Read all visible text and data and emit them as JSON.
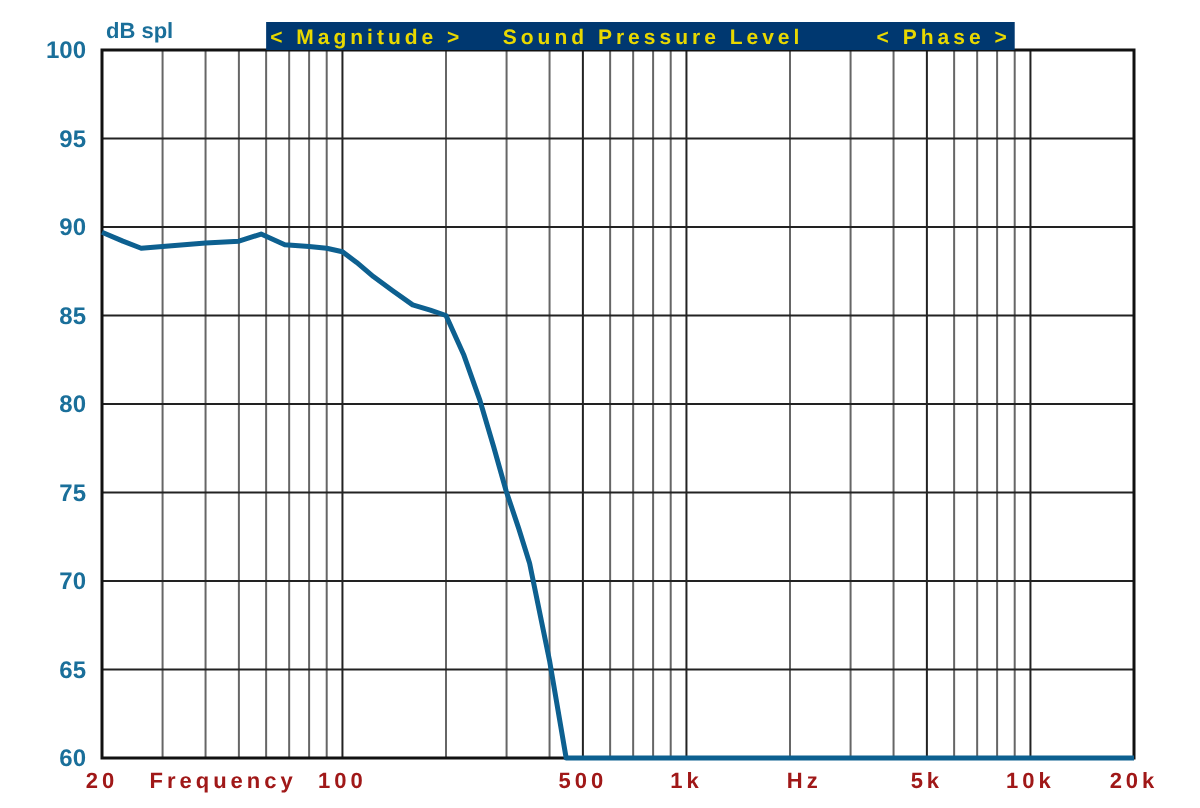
{
  "chart_data": {
    "type": "line",
    "title": "Sound Pressure Level",
    "ylabel": "dB spl",
    "xlabel": "Frequency",
    "annotations": [
      "< Magnitude >",
      "< Phase >",
      "Hz"
    ],
    "log": "x",
    "grid": true,
    "xlim": [
      20,
      20000
    ],
    "ylim": [
      60,
      100
    ],
    "xticks": [
      20,
      {
        "value": 30,
        "label": null
      },
      {
        "value": 40,
        "label": null
      },
      {
        "value": 50,
        "label": null
      },
      {
        "value": 60,
        "label": null
      },
      {
        "value": 70,
        "label": null
      },
      {
        "value": 80,
        "label": null
      },
      {
        "value": 90,
        "label": null
      },
      100,
      {
        "value": 200,
        "label": null
      },
      {
        "value": 300,
        "label": null
      },
      {
        "value": 400,
        "label": null
      },
      500,
      {
        "value": 600,
        "label": null
      },
      {
        "value": 700,
        "label": null
      },
      {
        "value": 800,
        "label": null
      },
      {
        "value": 900,
        "label": null
      },
      {
        "value": 1000,
        "label": "1k"
      },
      {
        "value": 2000,
        "label": null
      },
      {
        "value": 3000,
        "label": null
      },
      {
        "value": 4000,
        "label": null
      },
      {
        "value": 5000,
        "label": "5k"
      },
      {
        "value": 6000,
        "label": null
      },
      {
        "value": 7000,
        "label": null
      },
      {
        "value": 8000,
        "label": null
      },
      {
        "value": 9000,
        "label": null
      },
      {
        "value": 10000,
        "label": "10k"
      },
      {
        "value": 20000,
        "label": "20k"
      }
    ],
    "yticks": [
      60,
      65,
      70,
      75,
      80,
      85,
      90,
      95,
      100
    ],
    "series": [
      {
        "color": "#0d6090",
        "x": [
          20,
          23,
          26,
          30,
          40,
          50,
          58,
          68,
          80,
          90,
          100,
          110,
          123,
          140,
          160,
          180,
          200,
          225,
          251,
          275,
          299,
          325,
          350,
          400,
          447,
          1000,
          5000,
          20000
        ],
        "values": [
          89.7,
          89.2,
          88.8,
          88.9,
          89.1,
          89.2,
          89.6,
          89.0,
          88.9,
          88.8,
          88.6,
          88.0,
          87.2,
          86.4,
          85.6,
          85.3,
          85.0,
          82.8,
          80.2,
          77.6,
          75.1,
          73.0,
          71.0,
          65.5,
          60,
          60,
          60,
          60
        ]
      }
    ]
  }
}
